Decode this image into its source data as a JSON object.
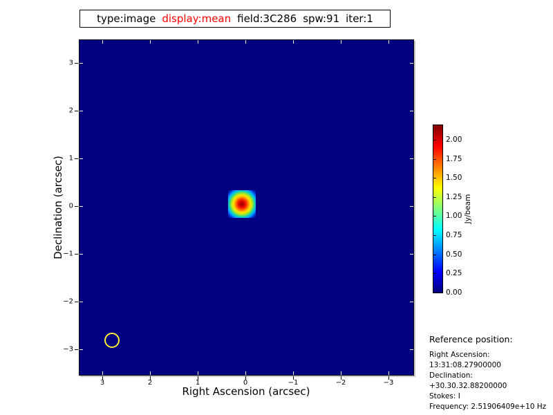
{
  "title_box": {
    "segments": [
      {
        "text": "type:image",
        "color": "#000000"
      },
      {
        "text": "display:mean",
        "color": "#ff0000"
      },
      {
        "text": "field:3C286",
        "color": "#000000"
      },
      {
        "text": "spw:91",
        "color": "#000000"
      },
      {
        "text": "iter:1",
        "color": "#000000"
      }
    ]
  },
  "chart_data": {
    "type": "heatmap",
    "title": "type:image display:mean field:3C286 spw:91 iter:1",
    "xlabel": "Right Ascension (arcsec)",
    "ylabel": "Declination (arcsec)",
    "x_axis": {
      "range": [
        3.5,
        -3.5
      ],
      "tick_values": [
        3,
        2,
        1,
        0,
        -1,
        -2,
        -3
      ],
      "tick_labels": [
        "3",
        "2",
        "1",
        "0",
        "−1",
        "−2",
        "−3"
      ]
    },
    "y_axis": {
      "range": [
        -3.5,
        3.5
      ],
      "tick_values": [
        3,
        2,
        1,
        0,
        -1,
        -2,
        -3
      ],
      "tick_labels": [
        "3",
        "2",
        "1",
        "0",
        "−1",
        "−2",
        "−3"
      ]
    },
    "colormap": "jet",
    "background_value": 0.0,
    "background_color": "#000080",
    "colorbar": {
      "label": "Jy/beam",
      "vmin": 0.0,
      "vmax": 2.19,
      "tick_values": [
        2.0,
        1.75,
        1.5,
        1.25,
        1.0,
        0.75,
        0.5,
        0.25,
        0.0
      ],
      "tick_labels": [
        "2.00",
        "1.75",
        "1.50",
        "1.25",
        "1.00",
        "0.75",
        "0.50",
        "0.25",
        "0.00"
      ]
    },
    "source": {
      "description": "compact gaussian source (3C286)",
      "ra_arcsec": 0.07,
      "dec_arcsec": 0.04,
      "peak_value_jy_per_beam": 2.2
    },
    "beam_marker": {
      "ra_arcsec": 2.78,
      "dec_arcsec": -2.78,
      "radius_arcsec": 0.13,
      "outline_color": "#ffee33"
    }
  },
  "reference": {
    "header": "Reference position:",
    "lines": [
      "Right Ascension: 13:31:08.27900000",
      "Declination: +30.30.32.88200000",
      "Stokes: I",
      "Frequency: 2.51906409e+10 Hz"
    ]
  }
}
